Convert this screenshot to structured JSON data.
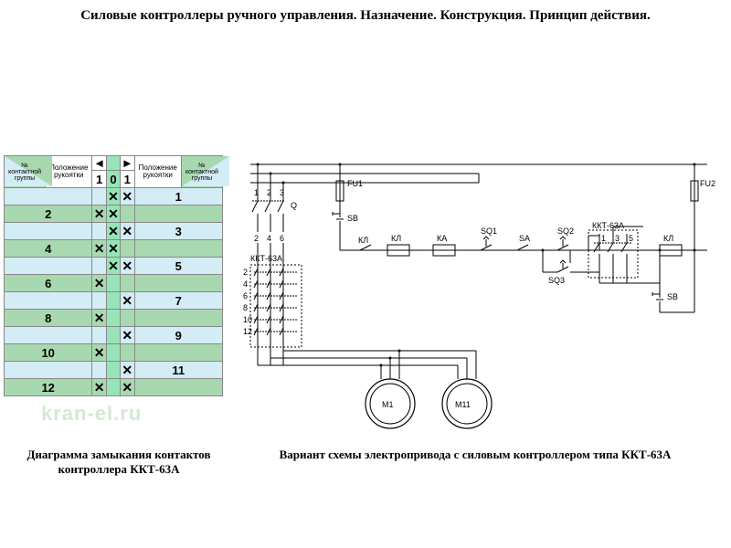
{
  "title": "Силовые контроллеры ручного управления. Назначение. Конструкция. Принцип действия.",
  "watermark": "kran-el.ru",
  "captions": {
    "left": "Диаграмма замыкания контактов контроллера ККТ-63А",
    "right": "Вариант схемы электропривода с силовым контроллером типа ККТ-63А"
  },
  "table": {
    "header": {
      "corner_left": "№ контактной группы",
      "pos_left": "Положение рукоятки",
      "pos_right": "Положение рукоятки",
      "corner_right": "№ контактной группы",
      "mid": [
        "1",
        "0",
        "1"
      ],
      "arrow_left": "◄",
      "arrow_right": "►"
    },
    "rows": [
      {
        "left": "",
        "m": [
          "",
          "X",
          "X"
        ],
        "right": "1",
        "shade": "light"
      },
      {
        "left": "2",
        "m": [
          "X",
          "X",
          ""
        ],
        "right": "",
        "shade": "dark"
      },
      {
        "left": "",
        "m": [
          "",
          "X",
          "X"
        ],
        "right": "3",
        "shade": "light"
      },
      {
        "left": "4",
        "m": [
          "X",
          "X",
          ""
        ],
        "right": "",
        "shade": "dark"
      },
      {
        "left": "",
        "m": [
          "",
          "X",
          "X"
        ],
        "right": "5",
        "shade": "light"
      },
      {
        "left": "6",
        "m": [
          "X",
          "",
          ""
        ],
        "right": "",
        "shade": "dark"
      },
      {
        "left": "",
        "m": [
          "",
          "",
          "X"
        ],
        "right": "7",
        "shade": "light"
      },
      {
        "left": "8",
        "m": [
          "X",
          "",
          ""
        ],
        "right": "",
        "shade": "dark"
      },
      {
        "left": "",
        "m": [
          "",
          "",
          "X"
        ],
        "right": "9",
        "shade": "light"
      },
      {
        "left": "10",
        "m": [
          "X",
          "",
          ""
        ],
        "right": "",
        "shade": "dark"
      },
      {
        "left": "",
        "m": [
          "",
          "",
          "X"
        ],
        "right": "11",
        "shade": "light"
      },
      {
        "left": "12",
        "m": [
          "X",
          "",
          "X"
        ],
        "right": "",
        "shade": "dark"
      }
    ],
    "colors": {
      "light": "#d3ecf5",
      "dark": "#a8d8b0",
      "mid": "#96e4b8",
      "border": "#888888"
    }
  },
  "schematic": {
    "labels": {
      "Q": "Q",
      "FU1": "FU1",
      "FU2": "FU2",
      "SB": "SB",
      "KKT": "ККТ-63А",
      "KL": "КЛ",
      "KA": "КА",
      "SQ1": "SQ1",
      "SA": "SA",
      "SQ2": "SQ2",
      "SQ3": "SQ3",
      "M1": "М1",
      "M11": "М11",
      "busnums_top": [
        "1",
        "2",
        "3"
      ],
      "busnums_bot": [
        "2",
        "4",
        "6"
      ],
      "kkt_nums": [
        "2",
        "4",
        "6",
        "8",
        "10",
        "12"
      ],
      "kkt_nums_right": [
        "1",
        "3",
        "5"
      ]
    },
    "colors": {
      "line": "#000000",
      "bg": "#ffffff",
      "motor_fill": "#ffffff"
    }
  }
}
